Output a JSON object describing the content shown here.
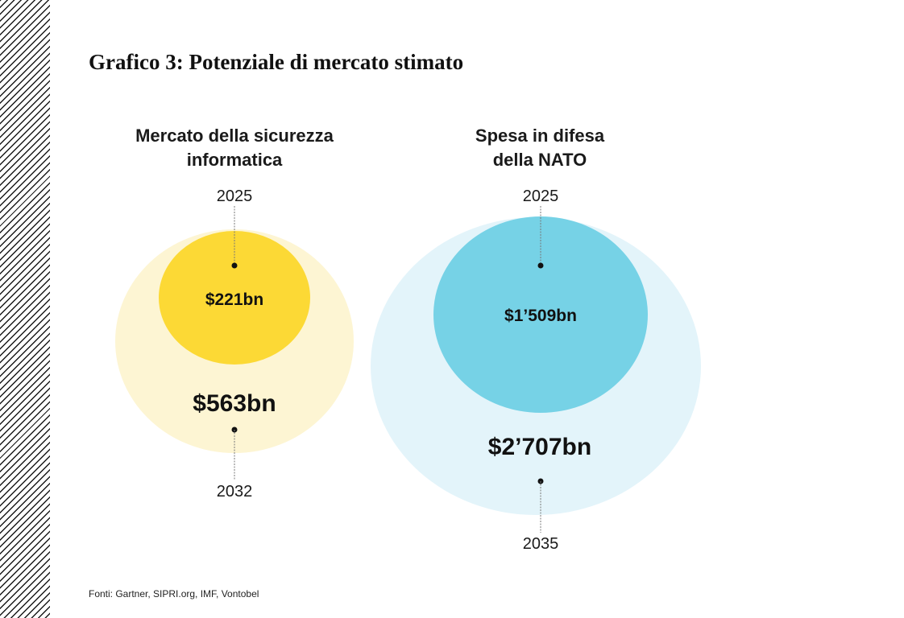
{
  "title": "Grafico 3: Potenziale di mercato stimato",
  "source": "Fonti: Gartner, SIPRI.org, IMF, Vontobel",
  "colors": {
    "cyber_outer": "#FDF5D3",
    "cyber_inner": "#FCD935",
    "nato_outer": "#E3F4FA",
    "nato_inner": "#76D2E6"
  },
  "chart_data": [
    {
      "type": "bubble",
      "title_lines": [
        "Mercato della sicurezza",
        "informatica"
      ],
      "points": [
        {
          "year": "2025",
          "label": "$221bn",
          "value": 221
        },
        {
          "year": "2032",
          "label": "$563bn",
          "value": 563
        }
      ]
    },
    {
      "type": "bubble",
      "title_lines": [
        "Spesa in difesa",
        "della NATO"
      ],
      "points": [
        {
          "year": "2025",
          "label": "$1’509bn",
          "value": 1509
        },
        {
          "year": "2035",
          "label": "$2’707bn",
          "value": 2707
        }
      ]
    }
  ]
}
